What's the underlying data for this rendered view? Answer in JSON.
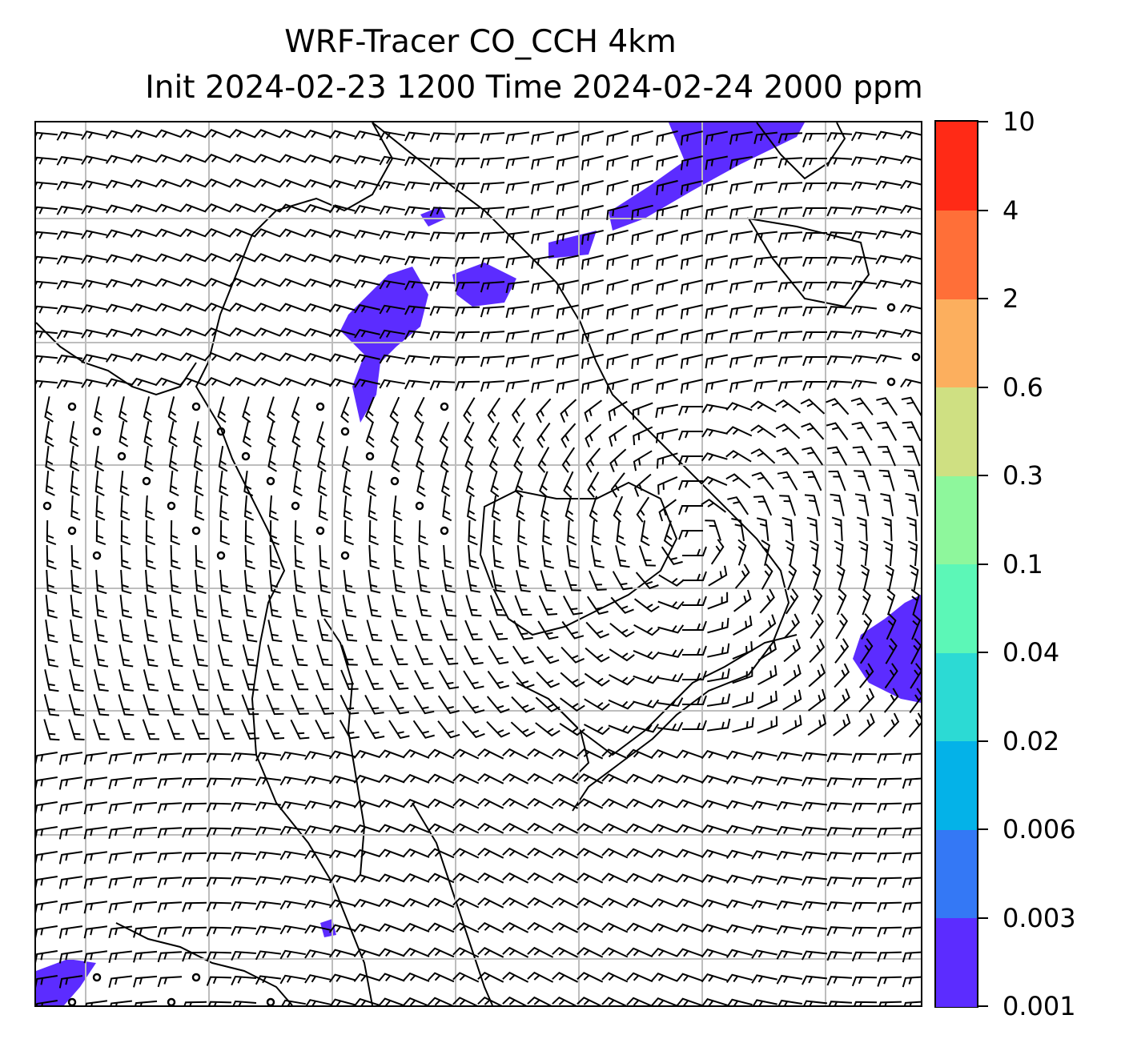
{
  "title": {
    "line1": "WRF-Tracer CO_CCH 4km",
    "line2": "Init 2024-02-23 1200 Time 2024-02-24 2000 ppm"
  },
  "colorbar": {
    "levels": [
      "0.001",
      "0.003",
      "0.006",
      "0.02",
      "0.04",
      "0.1",
      "0.3",
      "0.6",
      "2",
      "4",
      "10"
    ],
    "colors": [
      "#5c2cff",
      "#3478f5",
      "#04b2e8",
      "#2cdad4",
      "#5cf7b7",
      "#8ef79c",
      "#cfe082",
      "#fcaf5e",
      "#ff6f38",
      "#ff2a16"
    ]
  },
  "map": {
    "tracer_color": "#5c2cff",
    "grid_color": "#bdbdbd",
    "barb_color": "#000000",
    "gridlines": true
  }
}
